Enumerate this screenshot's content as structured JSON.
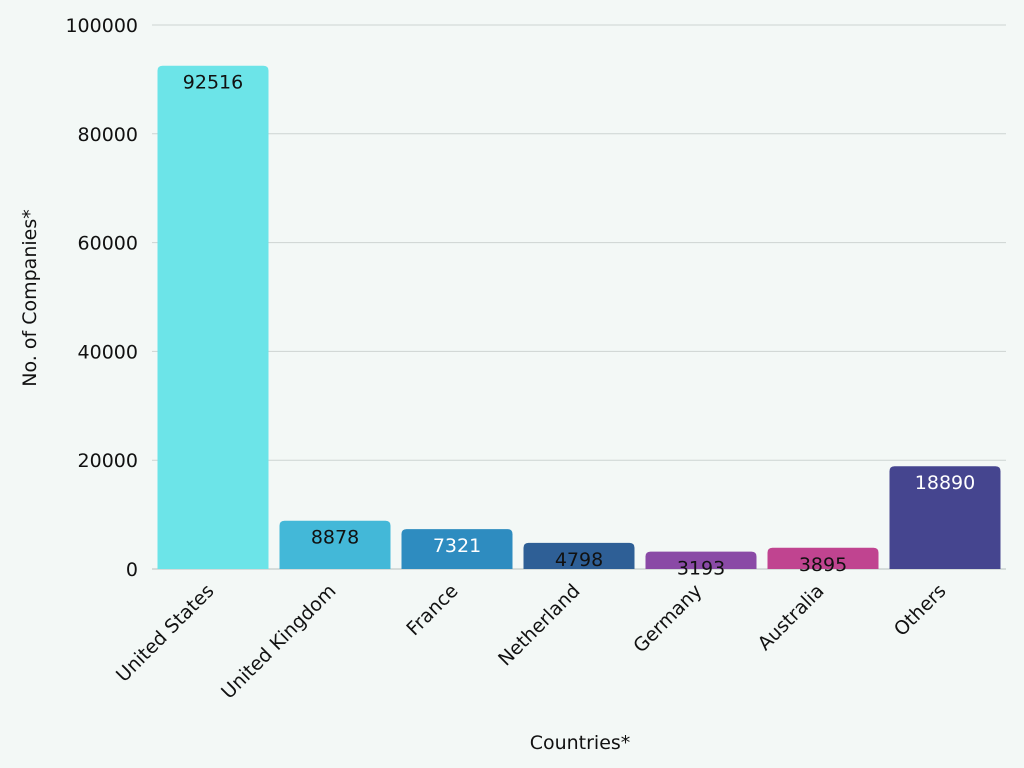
{
  "chart_data": {
    "type": "bar",
    "xlabel": "Countries*",
    "ylabel": "No. of Companies*",
    "ylim": [
      0,
      100000
    ],
    "yticks": [
      0,
      20000,
      40000,
      60000,
      80000,
      100000
    ],
    "grid": true,
    "categories": [
      "United States",
      "United Kingdom",
      "France",
      "Netherland",
      "Germany",
      "Australia",
      "Others"
    ],
    "values": [
      92516,
      8878,
      7321,
      4798,
      3193,
      3895,
      18890
    ],
    "colors": [
      "#6ce4e8",
      "#43b8d8",
      "#2e8cc0",
      "#2e5f96",
      "#8a4aa6",
      "#c04490",
      "#45458f"
    ],
    "label_colors": [
      "#111111",
      "#111111",
      "#ffffff",
      "#111111",
      "#111111",
      "#111111",
      "#ffffff"
    ]
  }
}
